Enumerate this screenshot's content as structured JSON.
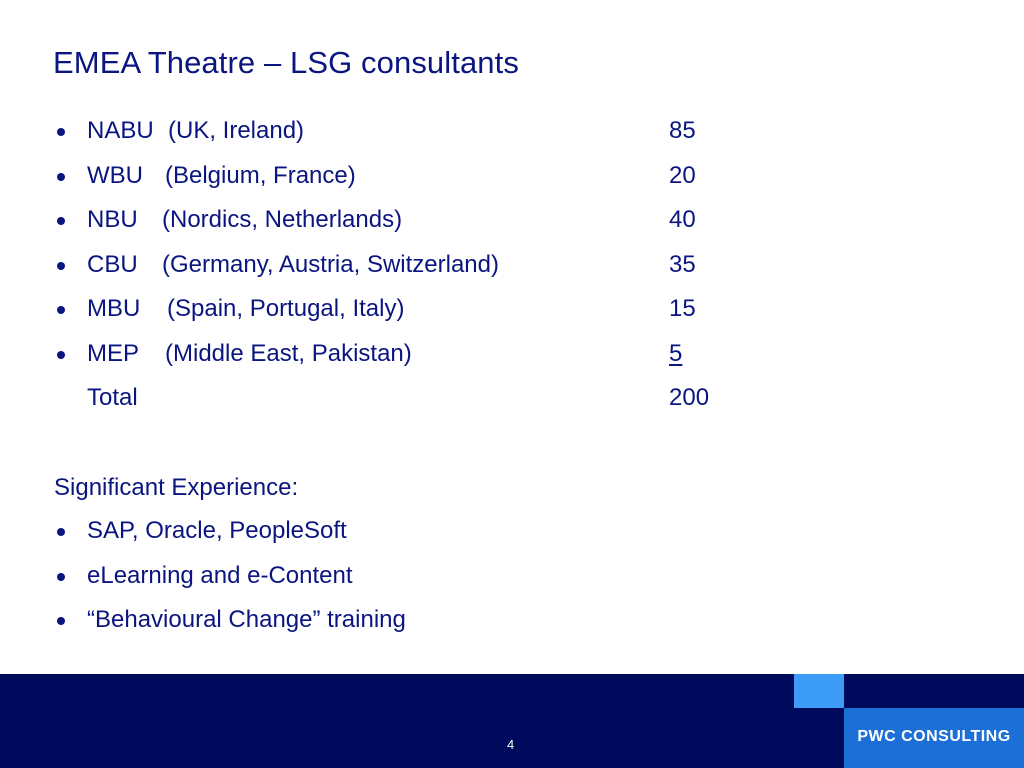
{
  "slide": {
    "title": "EMEA Theatre – LSG consultants",
    "rows": [
      {
        "code": "NABU",
        "region": "(UK, Ireland)",
        "value": "85"
      },
      {
        "code": "WBU",
        "region": "(Belgium, France)",
        "value": "20"
      },
      {
        "code": "NBU",
        "region": "(Nordics, Netherlands)",
        "value": "40"
      },
      {
        "code": "CBU",
        "region": "(Germany, Austria, Switzerland)",
        "value": "35"
      },
      {
        "code": "MBU",
        "region": "(Spain, Portugal, Italy)",
        "value": "15"
      },
      {
        "code": "MEP",
        "region": "(Middle East, Pakistan)",
        "value": "5"
      }
    ],
    "total": {
      "label": "Total",
      "value": "200"
    },
    "experience_heading": "Significant Experience:",
    "experience": [
      "SAP, Oracle, PeopleSoft",
      "eLearning and e-Content",
      "“Behavioural Change” training"
    ]
  },
  "footer": {
    "page_number": "4",
    "brand": "PWC CONSULTING",
    "colors": {
      "background": "#000a5c",
      "accent_light": "#3d9cf5",
      "accent_brand": "#1b6fd6",
      "text": "#0a1580"
    }
  }
}
